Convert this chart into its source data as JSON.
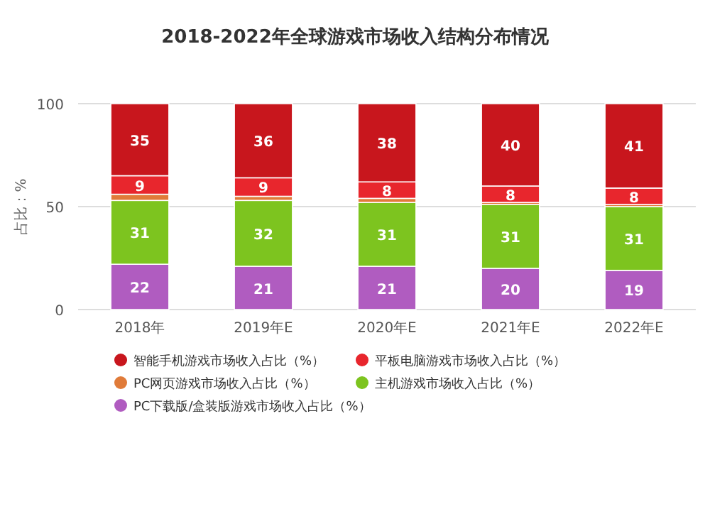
{
  "chart_data": {
    "type": "bar",
    "title": "2018-2022年全球游戏市场收入结构分布情况",
    "ylabel": "占比：%",
    "categories": [
      "2018年",
      "2019年E",
      "2020年E",
      "2021年E",
      "2022年E"
    ],
    "stacked": true,
    "ylim": [
      0,
      100
    ],
    "yticks": [
      0,
      50,
      100
    ],
    "grid": "y",
    "legend": "bottom",
    "series": [
      {
        "name": "PC下载版/盒装版游戏市场收入占比（%）",
        "color": "#b05cc0",
        "values": [
          22,
          21,
          21,
          20,
          19
        ],
        "value_labels": [
          "22",
          "21",
          "21",
          "20",
          "19"
        ]
      },
      {
        "name": "主机游戏市场收入占比（%）",
        "color": "#7dc41f",
        "values": [
          31,
          32,
          31,
          31,
          31
        ],
        "value_labels": [
          "31",
          "32",
          "31",
          "31",
          "31"
        ]
      },
      {
        "name": "PC网页游戏市场收入占比（%）",
        "color": "#e07b39",
        "values": [
          3,
          2,
          2,
          1,
          1
        ],
        "value_labels": [
          null,
          null,
          null,
          null,
          null
        ]
      },
      {
        "name": "平板电脑游戏市场收入占比（%）",
        "color": "#e8262d",
        "values": [
          9,
          9,
          8,
          8,
          8
        ],
        "value_labels": [
          "9",
          "9",
          "8",
          "8",
          "8"
        ]
      },
      {
        "name": "智能手机游戏市场收入占比（%）",
        "color": "#c8161d",
        "values": [
          35,
          36,
          38,
          40,
          41
        ],
        "value_labels": [
          "35",
          "36",
          "38",
          "40",
          "41"
        ]
      }
    ]
  }
}
